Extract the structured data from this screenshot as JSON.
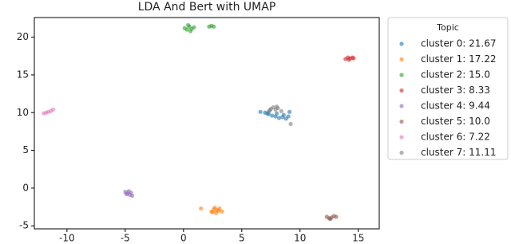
{
  "chart_data": {
    "type": "scatter",
    "title": "LDA And Bert with UMAP",
    "legend_title": "Topic",
    "legend": "outside right",
    "xlim": [
      -12.8,
      16.8
    ],
    "xticks": [
      -10,
      -5,
      0,
      5,
      10,
      15
    ],
    "ylim": [
      -5.4,
      22.6
    ],
    "yticks": [
      -5,
      0,
      5,
      10,
      15,
      20
    ],
    "series": [
      {
        "name": "cluster 0: 21.67",
        "color": "#1f77b4",
        "x": [
          6.6,
          7.0,
          7.3,
          7.6,
          7.9,
          8.2,
          8.5,
          8.8,
          9.1,
          7.4,
          8.0,
          8.6,
          9.0,
          7.2
        ],
        "values": [
          10.1,
          10.0,
          9.8,
          9.6,
          9.5,
          9.3,
          9.4,
          9.2,
          10.1,
          10.3,
          9.9,
          9.7,
          9.5,
          9.9
        ]
      },
      {
        "name": "cluster 1: 17.22",
        "color": "#ff7f0e",
        "x": [
          1.5,
          2.4,
          2.6,
          2.8,
          3.0,
          3.3,
          2.7,
          2.9,
          2.5,
          3.1
        ],
        "values": [
          -2.7,
          -3.1,
          -2.8,
          -3.3,
          -3.0,
          -3.1,
          -2.6,
          -2.9,
          -3.2,
          -2.7
        ]
      },
      {
        "name": "cluster 2: 15.0",
        "color": "#2ca02c",
        "x": [
          0.1,
          0.3,
          0.5,
          0.7,
          0.9,
          0.6,
          0.4,
          2.2,
          2.4,
          2.6
        ],
        "values": [
          21.2,
          21.0,
          21.4,
          21.1,
          21.3,
          20.8,
          21.6,
          21.4,
          21.5,
          21.4
        ]
      },
      {
        "name": "cluster 3: 8.33",
        "color": "#d62728",
        "x": [
          13.9,
          14.1,
          14.3,
          14.5,
          14.2,
          14.6
        ],
        "values": [
          17.1,
          17.3,
          17.2,
          17.3,
          17.0,
          17.2
        ]
      },
      {
        "name": "cluster 4: 9.44",
        "color": "#9467bd",
        "x": [
          -5.0,
          -4.8,
          -4.6,
          -4.4,
          -4.7,
          -4.5,
          -4.9
        ],
        "values": [
          -0.5,
          -0.7,
          -0.9,
          -1.0,
          -0.4,
          -0.6,
          -0.8
        ]
      },
      {
        "name": "cluster 5: 10.0",
        "color": "#8c564b",
        "x": [
          12.3,
          12.5,
          12.7,
          12.9,
          13.1,
          12.6
        ],
        "values": [
          -3.8,
          -4.0,
          -3.9,
          -3.7,
          -3.8,
          -4.1
        ]
      },
      {
        "name": "cluster 6: 7.22",
        "color": "#e377c2",
        "x": [
          -12.0,
          -11.8,
          -11.6,
          -11.4,
          -11.2
        ],
        "values": [
          9.9,
          10.0,
          10.1,
          10.2,
          10.4
        ]
      },
      {
        "name": "cluster 7: 11.11",
        "color": "#7f7f7f",
        "x": [
          7.5,
          7.7,
          7.9,
          8.1,
          8.4,
          9.2,
          8.0,
          7.3
        ],
        "values": [
          10.5,
          10.7,
          10.4,
          10.6,
          10.2,
          8.5,
          10.8,
          10.1
        ]
      }
    ]
  }
}
